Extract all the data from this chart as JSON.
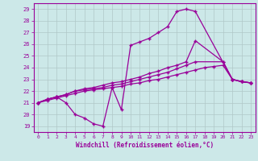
{
  "xlabel": "Windchill (Refroidissement éolien,°C)",
  "xlim": [
    -0.5,
    23.5
  ],
  "ylim": [
    18.5,
    29.5
  ],
  "yticks": [
    19,
    20,
    21,
    22,
    23,
    24,
    25,
    26,
    27,
    28,
    29
  ],
  "xticks": [
    0,
    1,
    2,
    3,
    4,
    5,
    6,
    7,
    8,
    9,
    10,
    11,
    12,
    13,
    14,
    15,
    16,
    17,
    18,
    19,
    20,
    21,
    22,
    23
  ],
  "bg_color": "#cce8e8",
  "grid_color": "#b0c8c8",
  "line_color": "#990099",
  "line1_x": [
    0,
    1,
    2,
    3,
    4,
    5,
    6,
    7,
    8,
    9,
    10,
    11,
    12,
    13,
    14,
    15,
    16,
    17,
    21,
    22,
    23
  ],
  "line1_y": [
    21.0,
    21.3,
    21.5,
    21.0,
    20.0,
    19.7,
    19.2,
    19.0,
    22.3,
    20.4,
    25.9,
    26.2,
    26.5,
    27.0,
    27.5,
    28.8,
    29.0,
    28.8,
    23.0,
    22.8,
    22.7
  ],
  "line2_x": [
    0,
    1,
    2,
    3,
    4,
    5,
    6,
    7,
    8,
    9,
    10,
    11,
    12,
    13,
    14,
    15,
    16,
    17,
    20,
    21,
    22,
    23
  ],
  "line2_y": [
    21.0,
    21.3,
    21.5,
    21.7,
    22.0,
    22.2,
    22.3,
    22.5,
    22.7,
    22.8,
    23.0,
    23.2,
    23.5,
    23.7,
    24.0,
    24.2,
    24.5,
    26.3,
    24.5,
    23.0,
    22.8,
    22.7
  ],
  "line3_x": [
    0,
    1,
    2,
    3,
    4,
    5,
    6,
    7,
    8,
    9,
    10,
    11,
    12,
    13,
    14,
    15,
    16,
    17,
    20,
    21,
    22,
    23
  ],
  "line3_y": [
    21.0,
    21.3,
    21.5,
    21.7,
    22.0,
    22.1,
    22.2,
    22.3,
    22.5,
    22.6,
    22.8,
    23.0,
    23.2,
    23.4,
    23.6,
    23.9,
    24.2,
    24.5,
    24.5,
    23.0,
    22.8,
    22.7
  ],
  "line4_x": [
    0,
    1,
    2,
    3,
    4,
    5,
    6,
    7,
    8,
    9,
    10,
    11,
    12,
    13,
    14,
    15,
    16,
    17,
    18,
    19,
    20,
    21,
    22,
    23
  ],
  "line4_y": [
    21.0,
    21.2,
    21.4,
    21.6,
    21.8,
    22.0,
    22.1,
    22.2,
    22.3,
    22.4,
    22.6,
    22.7,
    22.9,
    23.0,
    23.2,
    23.4,
    23.6,
    23.8,
    24.0,
    24.1,
    24.2,
    23.0,
    22.8,
    22.7
  ]
}
